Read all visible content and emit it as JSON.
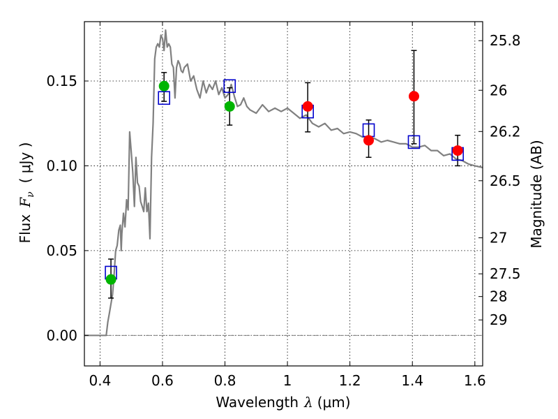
{
  "chart_data": {
    "type": "scatter",
    "xlabel_text": "Wavelength",
    "xlabel_symbol": "λ",
    "xlabel_unit": "(μm)",
    "ylabel_text": "Flux",
    "ylabel_symbol": "F",
    "ylabel_subscript": "ν",
    "ylabel_unit": "( μJy )",
    "y2label": "Magnitude (AB)",
    "xlim": [
      0.35,
      1.625
    ],
    "ylim": [
      -0.018,
      0.185
    ],
    "grid": true,
    "xticks": [
      {
        "value": 0.4,
        "label": "0.4"
      },
      {
        "value": 0.6,
        "label": "0.6"
      },
      {
        "value": 0.8,
        "label": "0.8"
      },
      {
        "value": 1.0,
        "label": "1"
      },
      {
        "value": 1.2,
        "label": "1.2"
      },
      {
        "value": 1.4,
        "label": "1.4"
      },
      {
        "value": 1.6,
        "label": "1.6"
      }
    ],
    "yticks": [
      {
        "value": 0.0,
        "label": "0.00"
      },
      {
        "value": 0.05,
        "label": "0.05"
      },
      {
        "value": 0.1,
        "label": "0.10"
      },
      {
        "value": 0.15,
        "label": "0.15"
      }
    ],
    "y2ticks": [
      {
        "value": 25.8,
        "label": "25.8"
      },
      {
        "value": 26.0,
        "label": "26"
      },
      {
        "value": 26.2,
        "label": "26.2"
      },
      {
        "value": 26.5,
        "label": "26.5"
      },
      {
        "value": 27.0,
        "label": "27"
      },
      {
        "value": 27.5,
        "label": "27.5"
      },
      {
        "value": 28.0,
        "label": "28"
      },
      {
        "value": 29.0,
        "label": "29"
      }
    ],
    "model_spectrum": {
      "color": "#808080",
      "x": [
        0.35,
        0.39,
        0.41,
        0.42,
        0.425,
        0.43,
        0.44,
        0.445,
        0.45,
        0.455,
        0.46,
        0.465,
        0.468,
        0.47,
        0.475,
        0.48,
        0.485,
        0.49,
        0.495,
        0.5,
        0.505,
        0.51,
        0.515,
        0.52,
        0.525,
        0.53,
        0.535,
        0.54,
        0.545,
        0.55,
        0.555,
        0.56,
        0.565,
        0.57,
        0.575,
        0.58,
        0.585,
        0.59,
        0.595,
        0.6,
        0.605,
        0.61,
        0.615,
        0.62,
        0.625,
        0.63,
        0.635,
        0.64,
        0.645,
        0.65,
        0.655,
        0.66,
        0.665,
        0.67,
        0.68,
        0.69,
        0.7,
        0.71,
        0.72,
        0.73,
        0.74,
        0.75,
        0.76,
        0.77,
        0.78,
        0.79,
        0.8,
        0.81,
        0.82,
        0.83,
        0.84,
        0.85,
        0.86,
        0.87,
        0.88,
        0.9,
        0.92,
        0.94,
        0.96,
        0.98,
        1.0,
        1.02,
        1.04,
        1.06,
        1.08,
        1.1,
        1.12,
        1.14,
        1.16,
        1.18,
        1.2,
        1.22,
        1.24,
        1.26,
        1.28,
        1.3,
        1.32,
        1.34,
        1.36,
        1.38,
        1.4,
        1.42,
        1.44,
        1.46,
        1.48,
        1.5,
        1.52,
        1.54,
        1.56,
        1.58,
        1.6,
        1.625
      ],
      "y": [
        0.0,
        0.0,
        0.0,
        0.0,
        0.008,
        0.013,
        0.024,
        0.035,
        0.05,
        0.053,
        0.062,
        0.065,
        0.05,
        0.06,
        0.072,
        0.064,
        0.08,
        0.074,
        0.12,
        0.108,
        0.096,
        0.076,
        0.105,
        0.09,
        0.088,
        0.079,
        0.076,
        0.073,
        0.087,
        0.073,
        0.078,
        0.057,
        0.105,
        0.125,
        0.163,
        0.17,
        0.172,
        0.17,
        0.177,
        0.175,
        0.168,
        0.18,
        0.17,
        0.172,
        0.17,
        0.16,
        0.158,
        0.14,
        0.158,
        0.162,
        0.16,
        0.156,
        0.155,
        0.158,
        0.16,
        0.15,
        0.153,
        0.145,
        0.14,
        0.15,
        0.143,
        0.148,
        0.145,
        0.15,
        0.142,
        0.146,
        0.14,
        0.142,
        0.148,
        0.141,
        0.135,
        0.136,
        0.14,
        0.135,
        0.133,
        0.131,
        0.136,
        0.132,
        0.134,
        0.132,
        0.134,
        0.131,
        0.128,
        0.13,
        0.125,
        0.123,
        0.125,
        0.121,
        0.122,
        0.119,
        0.12,
        0.119,
        0.117,
        0.117,
        0.116,
        0.114,
        0.115,
        0.114,
        0.113,
        0.113,
        0.111,
        0.111,
        0.112,
        0.109,
        0.109,
        0.106,
        0.107,
        0.104,
        0.103,
        0.101,
        0.1,
        0.099
      ]
    },
    "series": [
      {
        "marker": "square",
        "color": "#0000cc",
        "x": [
          0.435,
          0.605,
          0.815,
          1.065,
          1.26,
          1.405,
          1.545
        ],
        "y": [
          0.037,
          0.14,
          0.147,
          0.132,
          0.121,
          0.114,
          0.107
        ]
      },
      {
        "marker": "circle",
        "color": "#00b400",
        "x": [
          0.435,
          0.605,
          0.815
        ],
        "y": [
          0.033,
          0.147,
          0.135
        ],
        "yerr_low": [
          0.022,
          0.138,
          0.124
        ],
        "yerr_high": [
          0.045,
          0.155,
          0.146
        ]
      },
      {
        "marker": "circle",
        "color": "#ff0000",
        "x": [
          1.065,
          1.26,
          1.405,
          1.545
        ],
        "y": [
          0.135,
          0.115,
          0.141,
          0.109
        ],
        "yerr_low": [
          0.12,
          0.105,
          0.113,
          0.1
        ],
        "yerr_high": [
          0.149,
          0.127,
          0.168,
          0.118
        ]
      }
    ]
  }
}
